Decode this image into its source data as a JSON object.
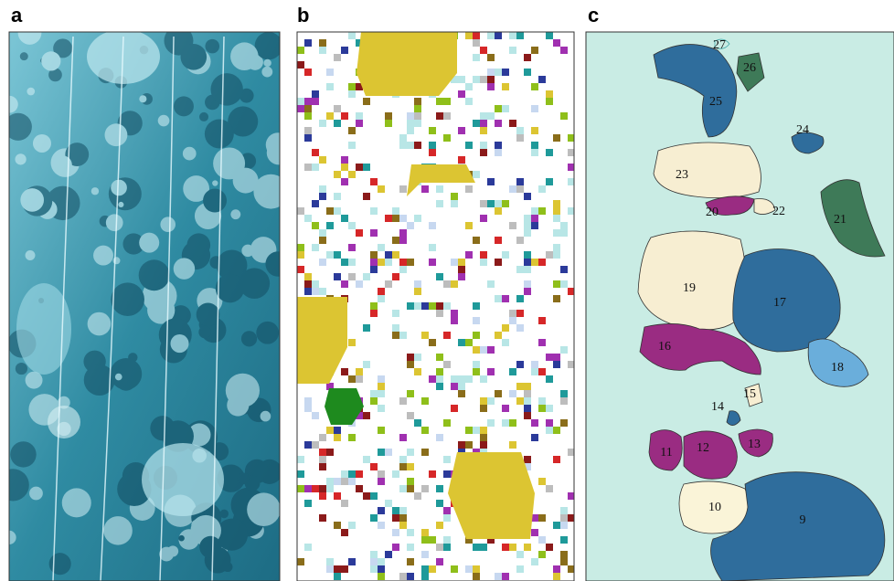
{
  "panels": [
    {
      "label": "a"
    },
    {
      "label": "b"
    },
    {
      "label": "c",
      "regions": [
        {
          "label": "27"
        },
        {
          "label": "26"
        },
        {
          "label": "25"
        },
        {
          "label": "24"
        },
        {
          "label": "23"
        },
        {
          "label": "20"
        },
        {
          "label": "22"
        },
        {
          "label": "21"
        },
        {
          "label": "19"
        },
        {
          "label": "17"
        },
        {
          "label": "16"
        },
        {
          "label": "18"
        },
        {
          "label": "15"
        },
        {
          "label": "14"
        },
        {
          "label": "13"
        },
        {
          "label": "11"
        },
        {
          "label": "12"
        },
        {
          "label": "10"
        },
        {
          "label": "9"
        }
      ]
    }
  ]
}
